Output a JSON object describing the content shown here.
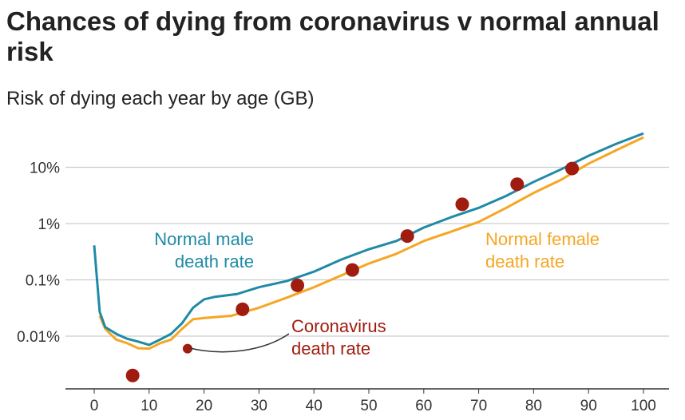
{
  "chart_data": {
    "type": "line",
    "title": "Chances of dying from coronavirus v normal annual risk",
    "subtitle": "Risk of dying each year by age (GB)",
    "xlabel": "",
    "ylabel": "",
    "xlim": [
      0,
      100
    ],
    "ylim_percent_log": [
      0.001,
      50
    ],
    "y_scale": "log",
    "x_ticks": [
      0,
      10,
      20,
      30,
      40,
      50,
      60,
      70,
      80,
      90,
      100
    ],
    "y_ticks": [
      {
        "value": 10,
        "label": "10%"
      },
      {
        "value": 1,
        "label": "1%"
      },
      {
        "value": 0.1,
        "label": "0.1%"
      },
      {
        "value": 0.01,
        "label": "0.01%"
      }
    ],
    "grid": true,
    "series": [
      {
        "name": "Normal male death rate",
        "label_lines": [
          "Normal male",
          "death rate"
        ],
        "color": "#1f8aa6",
        "type": "line",
        "x": [
          0,
          1,
          2,
          4,
          6,
          8,
          10,
          12,
          14,
          16,
          18,
          20,
          22,
          26,
          30,
          35,
          40,
          45,
          50,
          55,
          60,
          65,
          70,
          75,
          80,
          85,
          90,
          95,
          100
        ],
        "y": [
          0.41,
          0.027,
          0.0145,
          0.011,
          0.009,
          0.008,
          0.007,
          0.0087,
          0.011,
          0.017,
          0.032,
          0.045,
          0.05,
          0.056,
          0.074,
          0.095,
          0.14,
          0.23,
          0.35,
          0.49,
          0.85,
          1.3,
          1.9,
          3.1,
          5.5,
          9.2,
          16,
          26,
          40
        ]
      },
      {
        "name": "Normal female death rate",
        "label_lines": [
          "Normal female",
          "death rate"
        ],
        "color": "#f5a623",
        "type": "line",
        "x": [
          1,
          2,
          4,
          6,
          8,
          10,
          12,
          14,
          16,
          18,
          20,
          25,
          30,
          35,
          40,
          45,
          50,
          55,
          60,
          65,
          70,
          75,
          80,
          85,
          90,
          95,
          100
        ],
        "y": [
          0.023,
          0.0135,
          0.0087,
          0.0075,
          0.0061,
          0.006,
          0.0075,
          0.0087,
          0.0135,
          0.02,
          0.021,
          0.023,
          0.032,
          0.048,
          0.074,
          0.12,
          0.195,
          0.29,
          0.49,
          0.72,
          1.07,
          1.9,
          3.5,
          6.0,
          11.6,
          20,
          34
        ]
      },
      {
        "name": "Coronavirus death rate",
        "label_lines": [
          "Coronavirus",
          "death rate"
        ],
        "color": "#a01c10",
        "type": "scatter",
        "x": [
          7,
          17,
          27,
          37,
          47,
          57,
          67,
          77,
          87
        ],
        "y": [
          0.002,
          0.006,
          0.03,
          0.08,
          0.15,
          0.6,
          2.2,
          5,
          9.5
        ]
      }
    ]
  }
}
